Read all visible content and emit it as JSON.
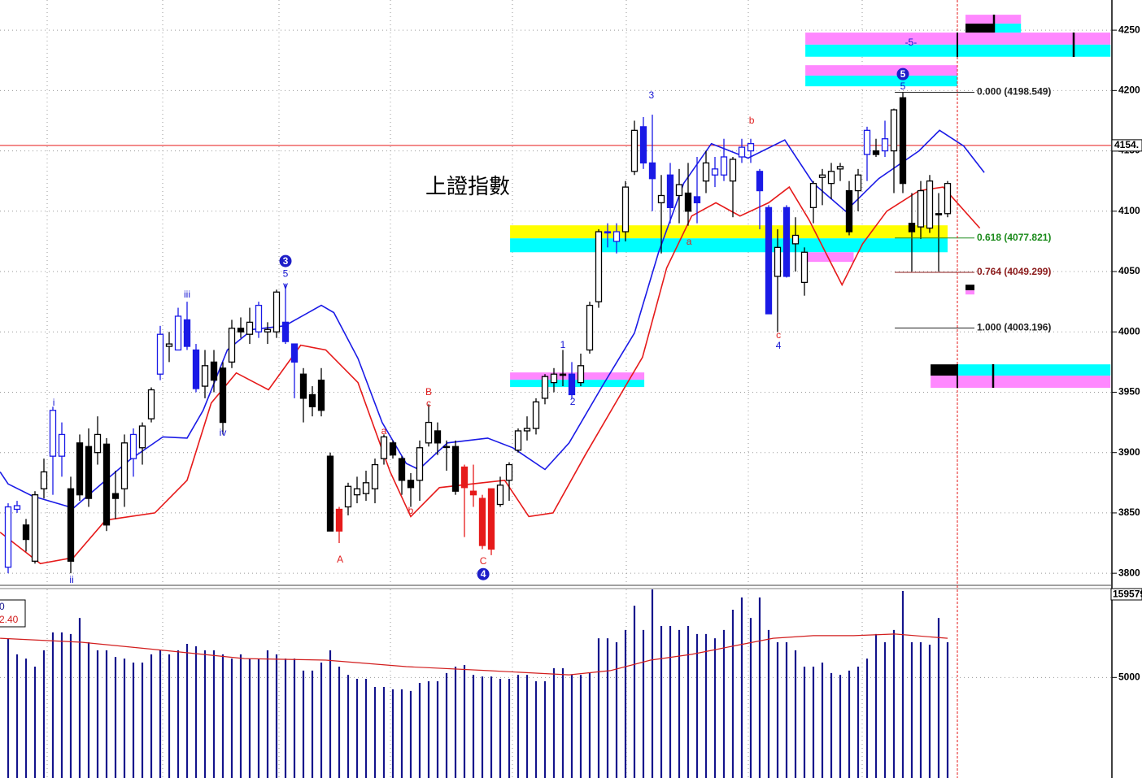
{
  "chart_data": {
    "type": "candlestick",
    "title": "上證指數",
    "ylim": [
      3790,
      4275
    ],
    "yticks": [
      3800,
      3850,
      3900,
      3950,
      4000,
      4050,
      4100,
      4150,
      4200,
      4250
    ],
    "grid": true,
    "current_price": {
      "value": 4154.5,
      "label": "4154."
    },
    "open": [
      3805,
      3853,
      3840,
      3810,
      3870,
      3897,
      3897,
      3870,
      3908,
      3905,
      3900,
      3907,
      3866,
      3870,
      3895,
      3904,
      3928,
      3965,
      3988,
      3985,
      4010,
      3985,
      3955,
      3975,
      3970,
      3975,
      4003,
      3998,
      4000,
      4000,
      4000,
      4008,
      3990,
      3965,
      3948,
      3960,
      3897,
      3853,
      3855,
      3865,
      3866,
      3870,
      3895,
      3908,
      3895,
      3877,
      3877,
      3908,
      3918,
      3905,
      3905,
      3888,
      3868,
      3862,
      3870,
      3857,
      3877,
      3902,
      3918,
      3920,
      3945,
      3958,
      3965,
      3965,
      3958,
      3985,
      4025,
      4083,
      4075,
      4083,
      4133,
      4170,
      4140,
      4107,
      4130,
      4113,
      4115,
      4112,
      4125,
      4130,
      4130,
      4125,
      4145,
      4150,
      4133,
      4103,
      4046,
      4103,
      4073,
      4041,
      4103,
      4128,
      4123,
      4135,
      4117,
      4117,
      4147,
      4150,
      4150,
      4150,
      4194,
      4090,
      4087,
      4086,
      4098,
      4098
    ],
    "high": [
      3858,
      3860,
      3845,
      3868,
      3895,
      3938,
      3925,
      3880,
      3915,
      3920,
      3930,
      3912,
      3885,
      3915,
      3920,
      3925,
      3954,
      4005,
      4000,
      4020,
      4025,
      3990,
      3985,
      3985,
      3975,
      4010,
      4012,
      4020,
      4025,
      4008,
      4035,
      4040,
      3990,
      3970,
      3955,
      3970,
      3900,
      3855,
      3875,
      3880,
      3885,
      3895,
      3915,
      3910,
      3897,
      3883,
      3910,
      3940,
      3925,
      3910,
      3910,
      3890,
      3890,
      3865,
      3870,
      3880,
      3892,
      3920,
      3930,
      3945,
      3965,
      3970,
      3985,
      3975,
      3982,
      4025,
      4085,
      4090,
      4090,
      4125,
      4175,
      4178,
      4180,
      4130,
      4140,
      4135,
      4140,
      4145,
      4150,
      4145,
      4160,
      4145,
      4160,
      4160,
      4135,
      4105,
      4085,
      4105,
      4095,
      4070,
      4125,
      4135,
      4140,
      4140,
      4125,
      4135,
      4170,
      4160,
      4175,
      4185,
      4198.5,
      4115,
      4125,
      4130,
      4115,
      4125
    ],
    "low": [
      3800,
      3850,
      3818,
      3808,
      3862,
      3865,
      3880,
      3800,
      3860,
      3855,
      3890,
      3835,
      3845,
      3855,
      3880,
      3890,
      3925,
      3960,
      3975,
      3985,
      3985,
      3950,
      3945,
      3950,
      3915,
      3970,
      3995,
      3990,
      3995,
      3990,
      3995,
      3990,
      3945,
      3925,
      3930,
      3930,
      3835,
      3825,
      3848,
      3858,
      3860,
      3858,
      3890,
      3895,
      3865,
      3855,
      3860,
      3905,
      3898,
      3885,
      3865,
      3830,
      3855,
      3820,
      3815,
      3855,
      3860,
      3900,
      3910,
      3915,
      3940,
      3950,
      3955,
      3945,
      3955,
      3982,
      4020,
      4070,
      4065,
      4075,
      4130,
      4135,
      4100,
      4065,
      4090,
      4090,
      4088,
      4090,
      4115,
      4120,
      4125,
      4095,
      4140,
      4140,
      4085,
      4015,
      4000,
      4045,
      4050,
      4030,
      4090,
      4105,
      4110,
      4125,
      4080,
      4100,
      4125,
      4145,
      4145,
      4115,
      4115,
      4050,
      4077,
      4082,
      4050,
      4095
    ],
    "close": [
      3855,
      3856,
      3828,
      3865,
      3884,
      3935,
      3915,
      3810,
      3865,
      3862,
      3915,
      3840,
      3862,
      3908,
      3915,
      3922,
      3952,
      3998,
      3990,
      4013,
      3988,
      3953,
      3972,
      3960,
      3925,
      4003,
      4000,
      4008,
      4022,
      4002,
      4033,
      3992,
      3975,
      3945,
      3938,
      3935,
      3835,
      3835,
      3872,
      3870,
      3875,
      3890,
      3913,
      3898,
      3877,
      3871,
      3904,
      3925,
      3908,
      3905,
      3868,
      3871,
      3865,
      3823,
      3820,
      3873,
      3890,
      3918,
      3920,
      3942,
      3963,
      3965,
      3964,
      3948,
      3972,
      4022,
      4083,
      4082,
      4083,
      4120,
      4167,
      4140,
      4127,
      4113,
      4103,
      4122,
      4100,
      4107,
      4140,
      4135,
      4145,
      4143,
      4153,
      4156,
      4117,
      4015,
      4070,
      4046,
      4080,
      4066,
      4123,
      4130,
      4133,
      4137,
      4083,
      4130,
      4167,
      4147,
      4160,
      4184,
      4123,
      4083,
      4117,
      4125,
      4097,
      4123
    ],
    "colors": [
      "#1a1ae6",
      "#1a1ae6",
      "#000000",
      "#000000",
      "#000000",
      "#1a1ae6",
      "#1a1ae6",
      "#000000",
      "#000000",
      "#000000",
      "#000000",
      "#000000",
      "#000000",
      "#000000",
      "#1a1ae6",
      "#000000",
      "#000000",
      "#1a1ae6",
      "#000000",
      "#1a1ae6",
      "#1a1ae6",
      "#1a1ae6",
      "#000000",
      "#000000",
      "#000000",
      "#000000",
      "#000000",
      "#000000",
      "#1a1ae6",
      "#000000",
      "#000000",
      "#1a1ae6",
      "#1a1ae6",
      "#000000",
      "#000000",
      "#000000",
      "#000000",
      "#e61a1a",
      "#000000",
      "#000000",
      "#000000",
      "#000000",
      "#000000",
      "#000000",
      "#000000",
      "#000000",
      "#000000",
      "#000000",
      "#000000",
      "#000000",
      "#000000",
      "#e61a1a",
      "#e61a1a",
      "#e61a1a",
      "#e61a1a",
      "#000000",
      "#000000",
      "#000000",
      "#000000",
      "#000000",
      "#000000",
      "#000000",
      "#000000",
      "#1a1ae6",
      "#000000",
      "#000000",
      "#000000",
      "#1a1ae6",
      "#1a1ae6",
      "#000000",
      "#000000",
      "#1a1ae6",
      "#1a1ae6",
      "#000000",
      "#1a1ae6",
      "#000000",
      "#000000",
      "#1a1ae6",
      "#000000",
      "#1a1ae6",
      "#1a1ae6",
      "#000000",
      "#1a1ae6",
      "#1a1ae6",
      "#1a1ae6",
      "#1a1ae6",
      "#000000",
      "#1a1ae6",
      "#000000",
      "#000000",
      "#000000",
      "#000000",
      "#000000",
      "#000000",
      "#000000",
      "#000000",
      "#1a1ae6",
      "#000000",
      "#1a1ae6",
      "#000000",
      "#000000",
      "#000000",
      "#000000",
      "#000000",
      "#000000",
      "#000000"
    ],
    "ma_lines": [
      {
        "color": "#1a1ae6",
        "x": [
          -0.9,
          0,
          2.7,
          7.3,
          10.9,
          13.6,
          17.3,
          20,
          21.8,
          24.5,
          27.3,
          30.9,
          35,
          36.4,
          39.1,
          41.8,
          44.5,
          45.9,
          49.1,
          53.6,
          56.4,
          60,
          62.7,
          66.4,
          70,
          72.7,
          75.5,
          78.6,
          82.7,
          86.8,
          90,
          93.6,
          97.3,
          101.8,
          104.1,
          106.8,
          109.1
        ],
        "values": [
          3884,
          3874,
          3864,
          3854,
          3877,
          3894,
          3913,
          3912,
          3935,
          3985,
          4002,
          4005,
          4022,
          4016,
          3978,
          3925,
          3891,
          3886,
          3908,
          3912,
          3904,
          3886,
          3908,
          3955,
          3999,
          4066,
          4123,
          4156,
          4144,
          4159,
          4123,
          4100,
          4127,
          4150,
          4167,
          4154,
          4132
        ]
      },
      {
        "color": "#e61a1a",
        "x": [
          -0.9,
          3.6,
          7.3,
          10.9,
          16.4,
          20,
          22.7,
          25.5,
          29.1,
          32.7,
          35.5,
          39.1,
          42.7,
          45,
          48.2,
          51.8,
          55.5,
          58.2,
          60.9,
          64.5,
          68.2,
          70.9,
          73.6,
          76.4,
          79.1,
          81.8,
          85,
          87.3,
          89.5,
          93.2,
          95.5,
          98.2,
          101.8,
          104.5,
          108.6
        ],
        "values": [
          3834,
          3808,
          3813,
          3844,
          3850,
          3877,
          3941,
          3966,
          3952,
          3989,
          3985,
          3958,
          3884,
          3847,
          3871,
          3874,
          3877,
          3847,
          3850,
          3898,
          3945,
          3979,
          4053,
          4096,
          4107,
          4096,
          4107,
          4120,
          4093,
          4039,
          4073,
          4100,
          4117,
          4120,
          4086
        ]
      }
    ],
    "zones": [
      {
        "color": "#ffff00",
        "x": [
          56.1,
          105
        ],
        "range": [
          4077.5,
          4088.3
        ]
      },
      {
        "color": "#00ffff",
        "x": [
          56.1,
          105
        ],
        "range": [
          4066,
          4077.5
        ]
      },
      {
        "color": "#ff88ff",
        "x": [
          89.1,
          94.5
        ],
        "range": [
          4058,
          4066
        ]
      },
      {
        "color": "#ff88ff",
        "x": [
          56.1,
          71.1
        ],
        "range": [
          3960.3,
          3966.4
        ]
      },
      {
        "color": "#00ffff",
        "x": [
          56.1,
          71.1
        ],
        "range": [
          3954.3,
          3960.3
        ]
      },
      {
        "color": "#ff88ff",
        "x": [
          89.1,
          123.2
        ],
        "range": [
          4238,
          4248
        ]
      },
      {
        "color": "#00ffff",
        "x": [
          89.1,
          123.2
        ],
        "range": [
          4228,
          4238
        ]
      },
      {
        "color": "#ff88ff",
        "x": [
          89.1,
          106.1
        ],
        "range": [
          4212.3,
          4221
        ]
      },
      {
        "color": "#00ffff",
        "x": [
          89.1,
          106.1
        ],
        "range": [
          4203.5,
          4212.3
        ]
      },
      {
        "color": "#ff88ff",
        "x": [
          107,
          113.2
        ],
        "range": [
          4255.4,
          4262.8
        ]
      },
      {
        "color": "#00ffff",
        "x": [
          110.2,
          113.2
        ],
        "range": [
          4248,
          4255.4
        ]
      },
      {
        "color": "#000000",
        "x": [
          107,
          110.2
        ],
        "range": [
          4248,
          4255.4
        ]
      },
      {
        "color": "#000000",
        "x": [
          103.1,
          106.1
        ],
        "range": [
          3963.7,
          3973.1
        ]
      },
      {
        "color": "#00ffff",
        "x": [
          106.1,
          123.2
        ],
        "range": [
          3963.7,
          3973.1
        ]
      },
      {
        "color": "#ff88ff",
        "x": [
          103.1,
          123.2
        ],
        "range": [
          3953.6,
          3963.7
        ]
      },
      {
        "color": "#000000",
        "x": [
          107,
          108
        ],
        "range": [
          4034.4,
          4039.1
        ]
      },
      {
        "color": "#ff88ff",
        "x": [
          107,
          108
        ],
        "range": [
          4031,
          4034.4
        ]
      }
    ],
    "fib_x": [
      99.1,
      108
    ],
    "fib_levels": [
      {
        "label": "0.000 (4198.549)",
        "value": 4198.549,
        "color": "#222222"
      },
      {
        "label": "0.618 (4077.821)",
        "value": 4077.821,
        "color": "#1a8a1a"
      },
      {
        "label": "0.764 (4049.299)",
        "value": 4049.299,
        "color": "#8b1a1a"
      },
      {
        "label": "1.000 (4003.196)",
        "value": 4003.196,
        "color": "#222222"
      }
    ],
    "annotations": [
      {
        "text": "i",
        "x": 5.1,
        "y": 3941.4,
        "color": "#1414d2",
        "circled": false
      },
      {
        "text": "ii",
        "x": 7.1,
        "y": 3794.5,
        "color": "#1414d2",
        "circled": false
      },
      {
        "text": "iii",
        "x": 20,
        "y": 4031,
        "color": "#1414d2",
        "circled": false
      },
      {
        "text": "iv",
        "x": 24,
        "y": 3916.5,
        "color": "#1414d2",
        "circled": false
      },
      {
        "text": "v",
        "x": 31,
        "y": 4038.5,
        "color": "#1414d2",
        "circled": false
      },
      {
        "text": "5",
        "x": 31,
        "y": 4048,
        "color": "#1414d2",
        "circled": false
      },
      {
        "text": "3",
        "x": 31,
        "y": 4058.7,
        "color": "#1e1ec8",
        "circled": true
      },
      {
        "text": "A",
        "x": 37.1,
        "y": 3811.4,
        "color": "#e01e1e",
        "circled": false
      },
      {
        "text": "a",
        "x": 42,
        "y": 3917.9,
        "color": "#e01e1e",
        "circled": false
      },
      {
        "text": "b",
        "x": 45,
        "y": 3851.9,
        "color": "#e01e1e",
        "circled": false
      },
      {
        "text": "B",
        "x": 47,
        "y": 3950.2,
        "color": "#e01e1e",
        "circled": false
      },
      {
        "text": "c",
        "x": 47,
        "y": 3940.8,
        "color": "#e01e1e",
        "circled": false
      },
      {
        "text": "C",
        "x": 53.1,
        "y": 3810,
        "color": "#e01e1e",
        "circled": false
      },
      {
        "text": "4",
        "x": 53.1,
        "y": 3799.3,
        "color": "#1e1ec8",
        "circled": true
      },
      {
        "text": "1",
        "x": 62,
        "y": 3989.3,
        "color": "#1414d2",
        "circled": false
      },
      {
        "text": "2",
        "x": 63.1,
        "y": 3942.1,
        "color": "#1414d2",
        "circled": false
      },
      {
        "text": "3",
        "x": 71.9,
        "y": 4196.1,
        "color": "#1414d2",
        "circled": false
      },
      {
        "text": "a",
        "x": 76.1,
        "y": 4074.8,
        "color": "#e01e1e",
        "circled": false
      },
      {
        "text": "b",
        "x": 83.1,
        "y": 4175.2,
        "color": "#e01e1e",
        "circled": false
      },
      {
        "text": "c",
        "x": 86.1,
        "y": 3997.4,
        "color": "#e01e1e",
        "circled": false
      },
      {
        "text": "4",
        "x": 86.1,
        "y": 3988.6,
        "color": "#1414d2",
        "circled": false
      },
      {
        "text": "5",
        "x": 100,
        "y": 4213.6,
        "color": "#1e1ec8",
        "circled": true
      },
      {
        "text": "5",
        "x": 100,
        "y": 4203.5,
        "color": "#1414d2",
        "circled": false
      },
      {
        "text": "-5-",
        "x": 100.9,
        "y": 4239.9,
        "color": "#1414d2",
        "circled": false
      }
    ],
    "volume": {
      "color": "#14148c",
      "ylim": [
        0,
        9500
      ],
      "yticks": [
        5000
      ],
      "current_label": "159579",
      "indicator_labels": [
        "0",
        "2.40"
      ],
      "values": [
        6950,
        6150,
        5940,
        5540,
        6350,
        7240,
        7240,
        7160,
        7960,
        6750,
        6350,
        6350,
        6020,
        5940,
        5740,
        5740,
        6150,
        6350,
        6150,
        6350,
        6670,
        6550,
        6350,
        6350,
        6150,
        5940,
        6150,
        5940,
        5940,
        6350,
        6150,
        5940,
        5940,
        5340,
        5340,
        5740,
        6350,
        5540,
        5130,
        4930,
        4930,
        4530,
        4530,
        4410,
        4410,
        4330,
        4730,
        4810,
        4810,
        5220,
        5540,
        5620,
        5130,
        5050,
        5050,
        4930,
        4930,
        5130,
        5130,
        4810,
        4810,
        5460,
        5460,
        5130,
        5130,
        5220,
        6950,
        6950,
        6750,
        7360,
        8570,
        7360,
        9800,
        7560,
        7560,
        7360,
        7560,
        7160,
        7160,
        6950,
        7360,
        8370,
        8980,
        7960,
        8980,
        7360,
        6750,
        6750,
        6350,
        5540,
        5540,
        5740,
        5220,
        5130,
        5340,
        5540,
        5940,
        7160,
        6750,
        7360,
        9300,
        6750,
        6750,
        6630,
        7960,
        6750
      ],
      "ma": {
        "color": "#d21e1e",
        "x": [
          -0.9,
          8.2,
          17.3,
          26.4,
          35.5,
          44.5,
          53.6,
          62.7,
          67.3,
          71.8,
          76.4,
          80.9,
          85.5,
          90,
          94.5,
          99.1,
          105
        ],
        "values": [
          6950,
          6750,
          6350,
          5940,
          5860,
          5540,
          5340,
          5130,
          5340,
          5860,
          6150,
          6550,
          6950,
          7080,
          7080,
          7160,
          6950
        ]
      }
    }
  }
}
